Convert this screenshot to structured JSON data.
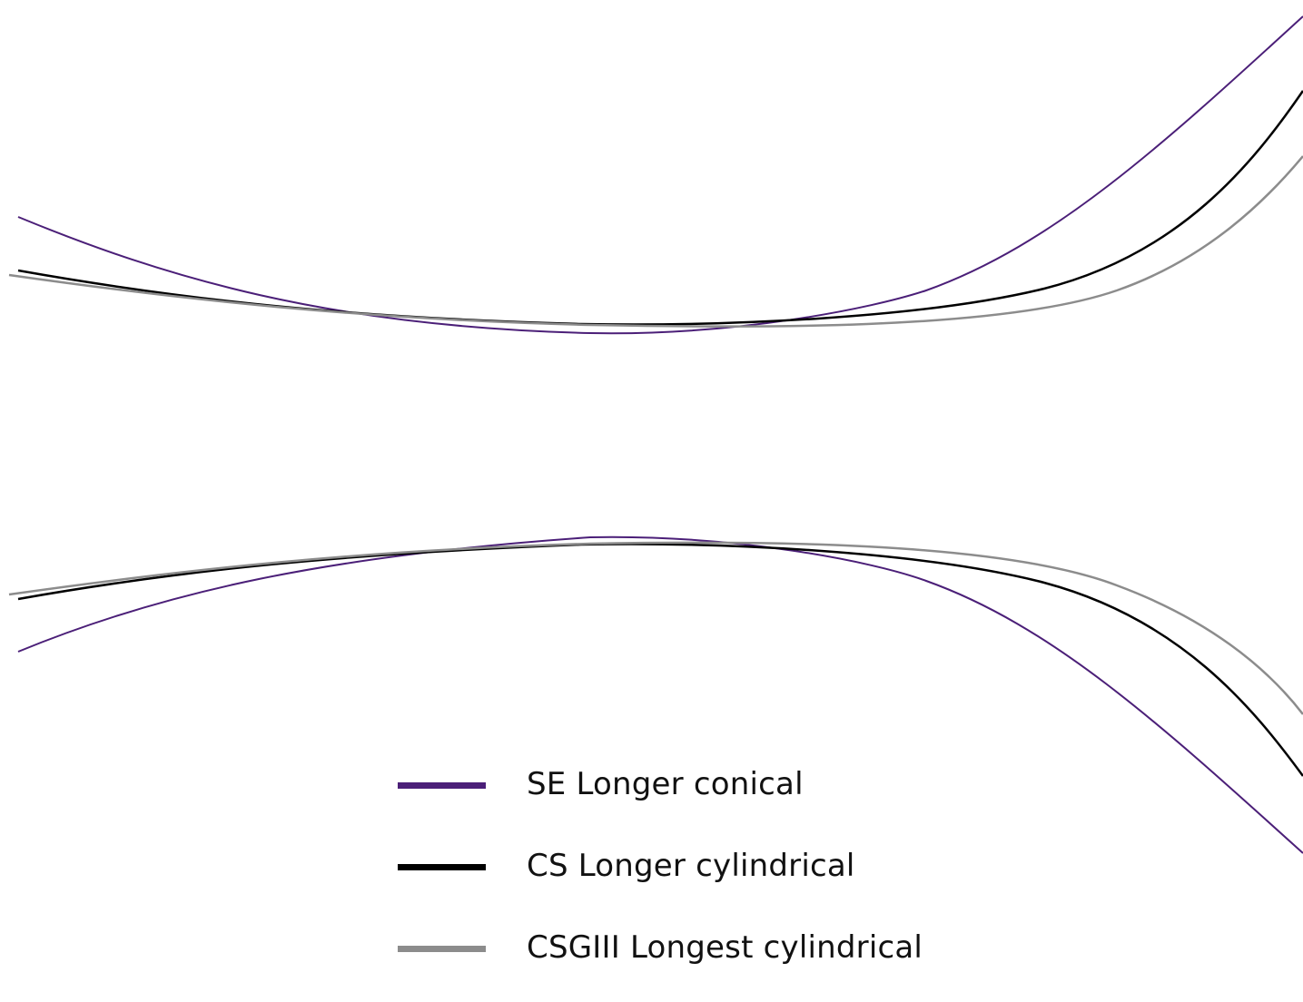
{
  "diagram": {
    "series": [
      {
        "id": "se",
        "name": "SE Longer conical",
        "color": "#4b1f78"
      },
      {
        "id": "cs",
        "name": "CS Longer cylindrical",
        "color": "#000000"
      },
      {
        "id": "csgiii",
        "name": "CSGIII Longest cylindrical",
        "color": "#8c8c8c"
      }
    ]
  }
}
